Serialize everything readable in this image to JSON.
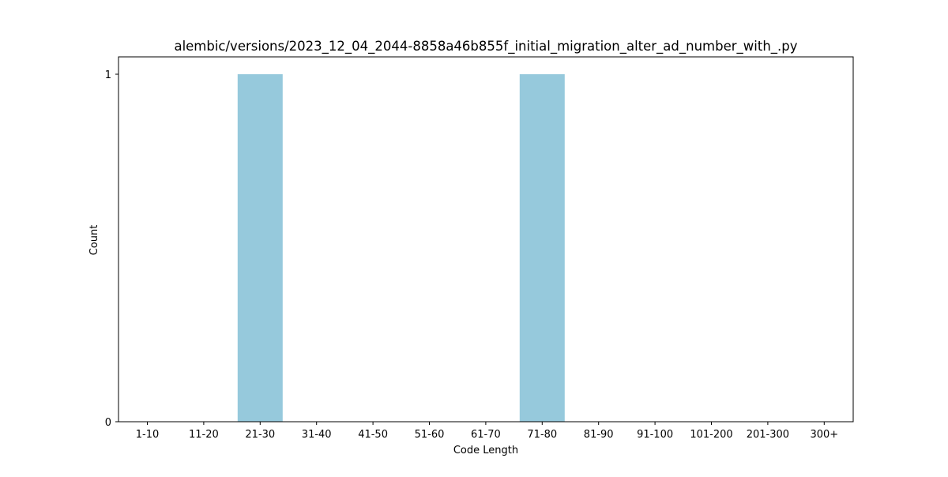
{
  "chart_data": {
    "type": "bar",
    "title": "alembic/versions/2023_12_04_2044-8858a46b855f_initial_migration_alter_ad_number_with_.py",
    "xlabel": "Code Length",
    "ylabel": "Count",
    "categories": [
      "1-10",
      "11-20",
      "21-30",
      "31-40",
      "41-50",
      "51-60",
      "61-70",
      "71-80",
      "81-90",
      "91-100",
      "101-200",
      "201-300",
      "300+"
    ],
    "values": [
      0,
      0,
      1,
      0,
      0,
      0,
      0,
      1,
      0,
      0,
      0,
      0,
      0
    ],
    "ylim": [
      0,
      1
    ],
    "yticks": [
      "0",
      "1"
    ],
    "bar_color": "#96c9dc",
    "grid": false,
    "legend": "none"
  }
}
